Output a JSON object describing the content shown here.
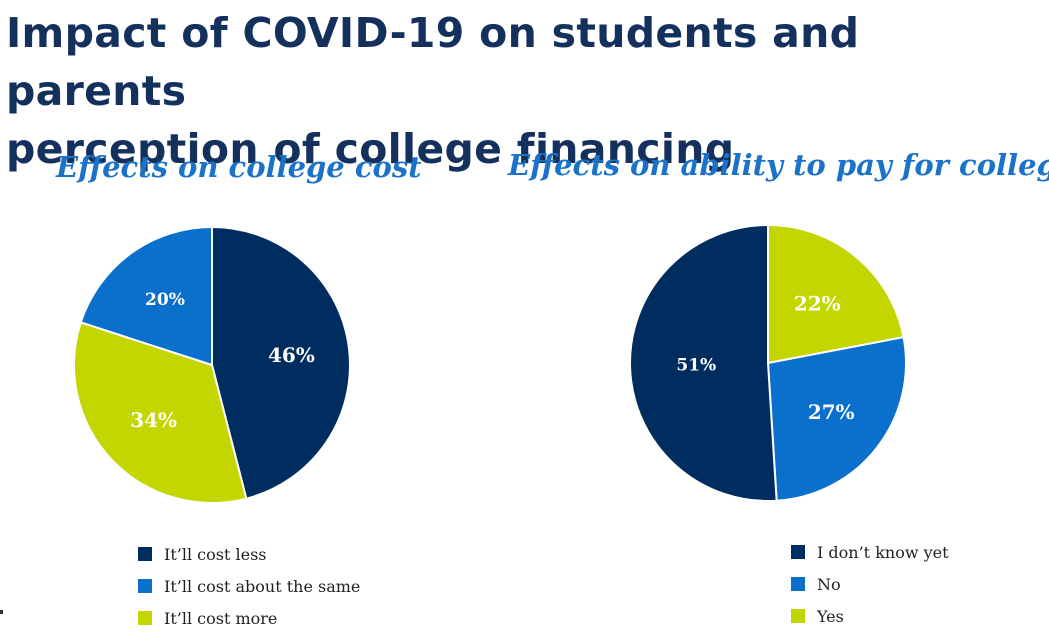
{
  "page": {
    "title_line1": "Impact of COVID-19 on students and parents",
    "title_line2": "perception of college financing"
  },
  "colors": {
    "navy": "#002d5f",
    "blue": "#0b6fcc",
    "lime": "#c3d600",
    "title": "#14305c",
    "chart_title": "#1a72c9"
  },
  "chart_data": [
    {
      "type": "pie",
      "title": "Effects on college cost",
      "slices": [
        {
          "label": "It’ll cost less",
          "value": 46,
          "display": "46%",
          "color": "#002d5f",
          "label_color": "#ffffff"
        },
        {
          "label": "It’ll cost more",
          "value": 34,
          "display": "34%",
          "color": "#c3d600",
          "label_color": "#ffffff"
        },
        {
          "label": "It’ll cost about the same",
          "value": 20,
          "display": "20%",
          "color": "#0b6fcc",
          "label_color": "#ffffff"
        }
      ],
      "legend": [
        "It’ll cost less",
        "It’ll cost about the same",
        "It’ll cost more"
      ],
      "legend_placement": "bottom"
    },
    {
      "type": "pie",
      "title": "Effects on ability to pay for college",
      "slices": [
        {
          "label": "Yes",
          "value": 22,
          "display": "22%",
          "color": "#c3d600",
          "label_color": "#ffffff"
        },
        {
          "label": "No",
          "value": 27,
          "display": "27%",
          "color": "#0b6fcc",
          "label_color": "#ffffff"
        },
        {
          "label": "I don’t know yet",
          "value": 51,
          "display": "51%",
          "color": "#002d5f",
          "label_color": "#ffffff"
        }
      ],
      "legend": [
        "I don’t know yet",
        "No",
        "Yes"
      ],
      "legend_placement": "bottom"
    }
  ]
}
